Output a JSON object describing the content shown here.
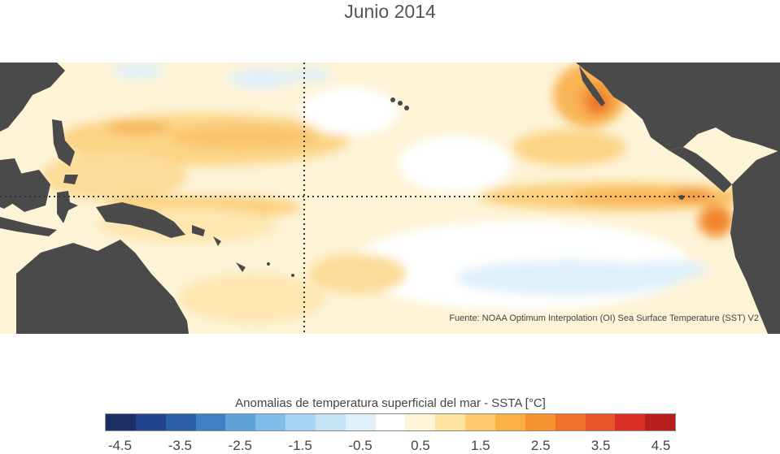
{
  "title": "Junio 2014",
  "source": "Fuente: NOAA Optimum Interpolation (OI) Sea Surface Temperature (SST) V2",
  "legend": {
    "title": "Anomalias de temperatura superficial del mar - SSTA  [°C]",
    "ticks": [
      "-4.5",
      "-3.5",
      "-2.5",
      "-1.5",
      "-0.5",
      "0.5",
      "1.5",
      "2.5",
      "3.5",
      "4.5"
    ],
    "colors": [
      "#1b2f66",
      "#22448c",
      "#2c5fa8",
      "#3f80c2",
      "#5da2d8",
      "#80bde8",
      "#a4d4f2",
      "#c3e2f6",
      "#dff0fa",
      "#ffffff",
      "#fff4d6",
      "#fee3a0",
      "#fdcb6e",
      "#fbaf45",
      "#f7932e",
      "#f0722a",
      "#e65428",
      "#d92f27",
      "#b5201e"
    ]
  },
  "map": {
    "land_color": "#4a4a4a",
    "background_color": "#fdefc6",
    "equator_guide": "dotted",
    "dateline_guide": "dotted"
  }
}
